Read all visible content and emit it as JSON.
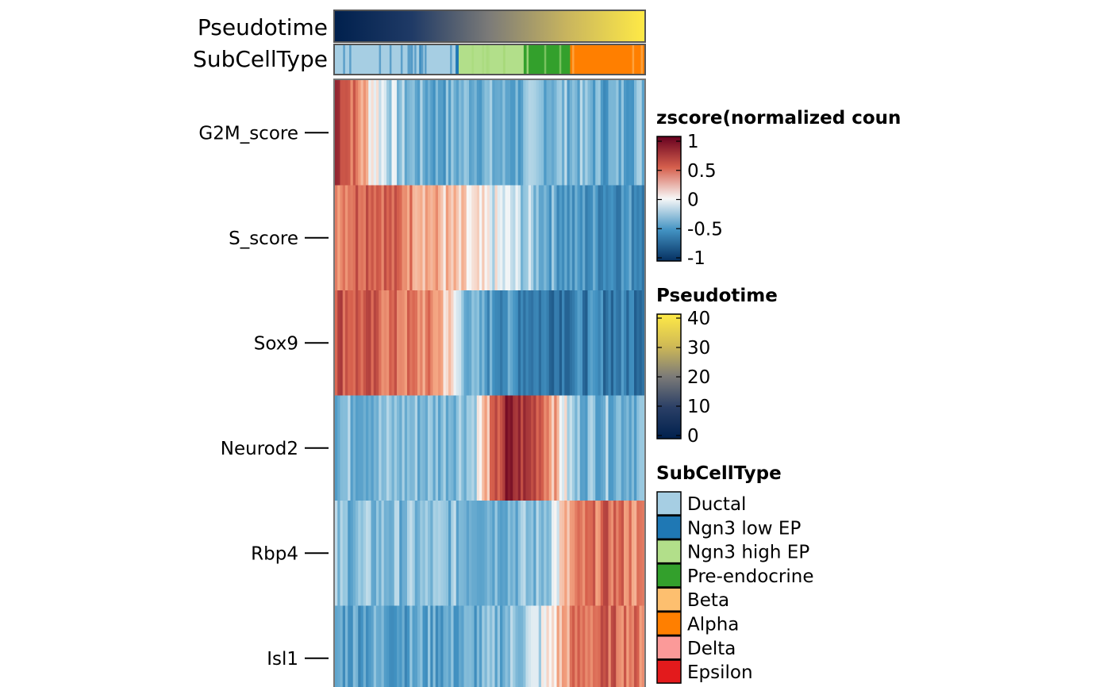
{
  "chart_data": {
    "type": "heatmap",
    "rows": [
      "G2M_score",
      "S_score",
      "Sox9",
      "Neurod2",
      "Rbp4",
      "Isl1"
    ],
    "x_order": "cells ordered by Pseudotime (low to high)",
    "approx_row_zscore_by_column_bin": {
      "note": "each row lists approximate z-scores across 10 equal column bins (left to right)",
      "G2M_score": [
        0.8,
        0.1,
        -0.3,
        -0.4,
        -0.3,
        -0.4,
        -0.3,
        -0.3,
        -0.4,
        -0.3
      ],
      "S_score": [
        0.4,
        0.6,
        0.4,
        0.2,
        0.0,
        -0.1,
        -0.3,
        -0.5,
        -0.5,
        -0.5
      ],
      "Sox9": [
        0.6,
        0.5,
        0.4,
        0.3,
        -0.4,
        -0.5,
        -0.6,
        -0.6,
        -0.6,
        -0.6
      ],
      "Neurod2": [
        -0.3,
        -0.3,
        -0.3,
        -0.3,
        -0.2,
        0.8,
        0.6,
        -0.3,
        -0.3,
        -0.3
      ],
      "Rbp4": [
        -0.3,
        -0.3,
        -0.3,
        -0.3,
        -0.3,
        -0.3,
        -0.3,
        0.3,
        0.5,
        0.3
      ],
      "Isl1": [
        -0.4,
        -0.4,
        -0.4,
        -0.4,
        -0.4,
        -0.3,
        -0.1,
        0.4,
        0.5,
        0.4
      ]
    },
    "annotations": {
      "pseudotime_label": "Pseudotime",
      "subcelltype_label": "SubCellType",
      "pseudotime_range": [
        0,
        42
      ],
      "subcelltype_segments": [
        {
          "type": "Ductal",
          "from": 0.0,
          "to": 0.39
        },
        {
          "type": "Ngn3 low EP",
          "from": 0.39,
          "to": 0.4
        },
        {
          "type": "Ngn3 high EP",
          "from": 0.4,
          "to": 0.61
        },
        {
          "type": "Pre-endocrine",
          "from": 0.61,
          "to": 0.76
        },
        {
          "type": "Alpha",
          "from": 0.76,
          "to": 1.0
        }
      ]
    },
    "legends": {
      "zscore": {
        "title": "zscore(normalized coun",
        "ticks": [
          "1",
          "0.5",
          "0",
          "-0.5",
          "-1"
        ],
        "range": [
          -1,
          1
        ]
      },
      "pseudotime": {
        "title": "Pseudotime",
        "ticks": [
          "40",
          "30",
          "20",
          "10",
          "0"
        ],
        "range": [
          0,
          42
        ]
      },
      "subcelltype": {
        "title": "SubCellType",
        "items": [
          {
            "label": "Ductal",
            "color": "#a6cee3"
          },
          {
            "label": "Ngn3 low EP",
            "color": "#1f78b4"
          },
          {
            "label": "Ngn3 high EP",
            "color": "#b2df8a"
          },
          {
            "label": "Pre-endocrine",
            "color": "#33a02c"
          },
          {
            "label": "Beta",
            "color": "#fdbf6f"
          },
          {
            "label": "Alpha",
            "color": "#ff7f00"
          },
          {
            "label": "Delta",
            "color": "#fb9a99"
          },
          {
            "label": "Epsilon",
            "color": "#e31a1c"
          }
        ]
      }
    },
    "colors": {
      "zscore_low": "#053061",
      "zscore_mid": "#f7f7f7",
      "zscore_high": "#67001f",
      "pseudotime_low": "#00204d",
      "pseudotime_mid": "#7c7b78",
      "pseudotime_high": "#ffea46"
    }
  }
}
